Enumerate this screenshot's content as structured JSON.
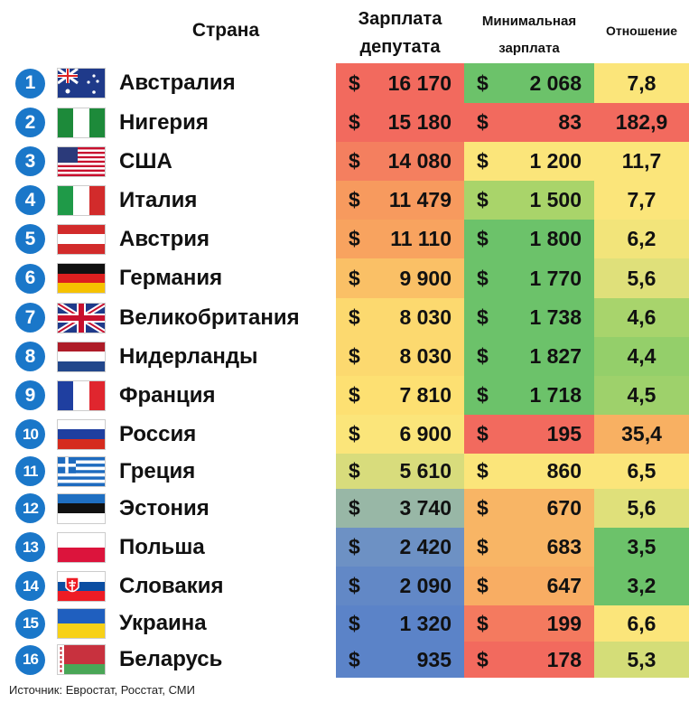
{
  "headers": {
    "country": "Страна",
    "deputy_line1": "Зарплата",
    "deputy_line2": "депутата",
    "min_line1": "Минимальная",
    "min_line2": "зарплата",
    "ratio": "Отношение"
  },
  "currency_symbol": "$",
  "source": "Источник: Евростат, Росстат, СМИ",
  "colors": {
    "red": "#f26a5e",
    "orange": "#f7a85e",
    "yellow": "#fbe57a",
    "green": "#6cc26a",
    "blue": "#5b83c8",
    "number_badge": "#1a77c9"
  },
  "chart_data": {
    "type": "table",
    "columns": [
      "Страна",
      "Зарплата депутата",
      "Минимальная зарплата",
      "Отношение"
    ],
    "rows": [
      {
        "rank": "1",
        "country": "Австралия",
        "flag_icon": "australia-flag-icon",
        "deputy_salary": "16 170",
        "min_wage": "2 068",
        "ratio": "7,8",
        "dep_color": "#f26a5e",
        "min_color": "#6cc26a",
        "ratio_color": "#fbe57a"
      },
      {
        "rank": "2",
        "country": "Нигерия",
        "flag_icon": "nigeria-flag-icon",
        "deputy_salary": "15 180",
        "min_wage": "83",
        "ratio": "182,9",
        "dep_color": "#f26a5e",
        "min_color": "#f26a5e",
        "ratio_color": "#f26a5e"
      },
      {
        "rank": "3",
        "country": "США",
        "flag_icon": "usa-flag-icon",
        "deputy_salary": "14 080",
        "min_wage": "1 200",
        "ratio": "11,7",
        "dep_color": "#f47f5f",
        "min_color": "#fbe57a",
        "ratio_color": "#fbe57a"
      },
      {
        "rank": "4",
        "country": "Италия",
        "flag_icon": "italy-flag-icon",
        "deputy_salary": "11 479",
        "min_wage": "1 500",
        "ratio": "7,7",
        "dep_color": "#f79a5e",
        "min_color": "#a9d46a",
        "ratio_color": "#fbe57a"
      },
      {
        "rank": "5",
        "country": "Австрия",
        "flag_icon": "austria-flag-icon",
        "deputy_salary": "11 110",
        "min_wage": "1 800",
        "ratio": "6,2",
        "dep_color": "#f8a35f",
        "min_color": "#6cc26a",
        "ratio_color": "#f2e47a"
      },
      {
        "rank": "6",
        "country": "Германия",
        "flag_icon": "germany-flag-icon",
        "deputy_salary": "9 900",
        "min_wage": "1 770",
        "ratio": "5,6",
        "dep_color": "#fac066",
        "min_color": "#6cc26a",
        "ratio_color": "#dfe07a"
      },
      {
        "rank": "7",
        "country": "Великобритания",
        "flag_icon": "uk-flag-icon",
        "deputy_salary": "8 030",
        "min_wage": "1 738",
        "ratio": "4,6",
        "dep_color": "#fcd96f",
        "min_color": "#6cc26a",
        "ratio_color": "#a8d46c"
      },
      {
        "rank": "8",
        "country": "Нидерланды",
        "flag_icon": "netherlands-flag-icon",
        "deputy_salary": "8 030",
        "min_wage": "1 827",
        "ratio": "4,4",
        "dep_color": "#fcd96f",
        "min_color": "#6cc26a",
        "ratio_color": "#94cf6a"
      },
      {
        "rank": "9",
        "country": "Франция",
        "flag_icon": "france-flag-icon",
        "deputy_salary": "7 810",
        "min_wage": "1 718",
        "ratio": "4,5",
        "dep_color": "#fde072",
        "min_color": "#6cc26a",
        "ratio_color": "#9ed16b"
      },
      {
        "rank": "10",
        "country": "Россия",
        "flag_icon": "russia-flag-icon",
        "deputy_salary": "6 900",
        "min_wage": "195",
        "ratio": "35,4",
        "dep_color": "#fbe57a",
        "min_color": "#f26a5e",
        "ratio_color": "#f8b062"
      },
      {
        "rank": "11",
        "country": "Греция",
        "flag_icon": "greece-flag-icon",
        "deputy_salary": "5 610",
        "min_wage": "860",
        "ratio": "6,5",
        "dep_color": "#d8dc7c",
        "min_color": "#fbe57a",
        "ratio_color": "#fbe57a"
      },
      {
        "rank": "12",
        "country": "Эстония",
        "flag_icon": "estonia-flag-icon",
        "deputy_salary": "3 740",
        "min_wage": "670",
        "ratio": "5,6",
        "dep_color": "#98b7a6",
        "min_color": "#f8b565",
        "ratio_color": "#dfe07a"
      },
      {
        "rank": "13",
        "country": "Польша",
        "flag_icon": "poland-flag-icon",
        "deputy_salary": "2 420",
        "min_wage": "683",
        "ratio": "3,5",
        "dep_color": "#6d91c4",
        "min_color": "#f8b565",
        "ratio_color": "#6cc26a"
      },
      {
        "rank": "14",
        "country": "Словакия",
        "flag_icon": "slovakia-flag-icon",
        "deputy_salary": "2 090",
        "min_wage": "647",
        "ratio": "3,2",
        "dep_color": "#6288c6",
        "min_color": "#f8ad63",
        "ratio_color": "#6cc26a"
      },
      {
        "rank": "15",
        "country": "Украина",
        "flag_icon": "ukraine-flag-icon",
        "deputy_salary": "1 320",
        "min_wage": "199",
        "ratio": "6,6",
        "dep_color": "#5b83c8",
        "min_color": "#f47a5f",
        "ratio_color": "#fbe57a"
      },
      {
        "rank": "16",
        "country": "Беларусь",
        "flag_icon": "belarus-flag-icon",
        "deputy_salary": "935",
        "min_wage": "178",
        "ratio": "5,3",
        "dep_color": "#5b83c8",
        "min_color": "#f26a5e",
        "ratio_color": "#d4dd78"
      }
    ]
  }
}
